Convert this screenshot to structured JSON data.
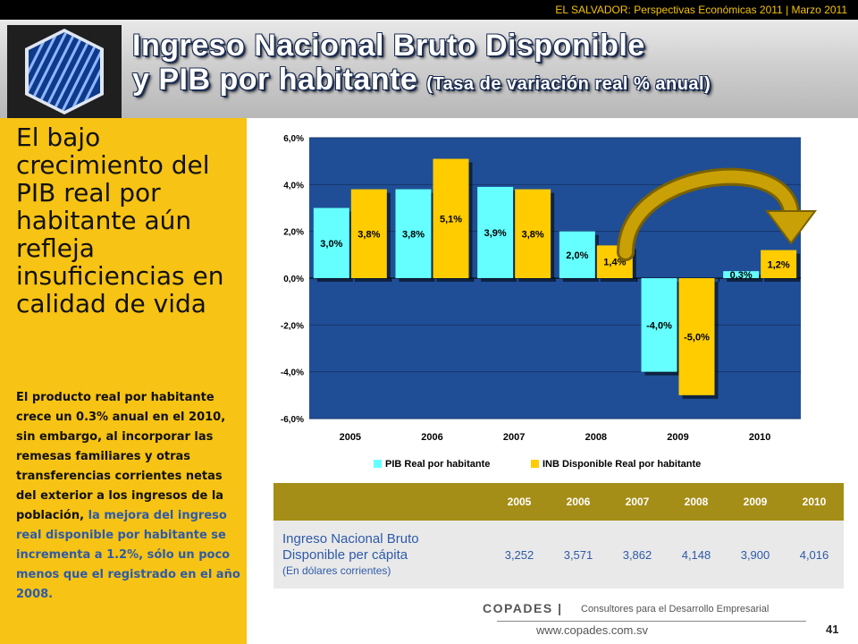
{
  "top_subtitle": "EL SALVADOR: Perspectivas Económicas 2011 | Marzo 2011",
  "title": {
    "line1": "Ingreso Nacional Bruto Disponible",
    "line2": "y PIB por habitante",
    "line2_suffix": "(Tasa de variación real % anual)"
  },
  "headline": "El bajo crecimiento del PIB real por habitante aún refleja insuficiencias en calidad de vida",
  "body": {
    "plain": "El producto real por habitante crece un 0.3% anual en el 2010, sin embargo, al incorporar las remesas familiares y otras transferencias corrientes netas del exterior a los ingresos de la población,",
    "highlight": " la mejora del ingreso real disponible por habitante se incrementa a 1.2%, sólo un poco menos que el registrado en el año 2008."
  },
  "colors": {
    "plot_bg": "#1f4e96",
    "series1": "#66ffff",
    "series2": "#ffcc00",
    "arrow": "#c9a106",
    "panel": "#f7c314",
    "table_header": "#a58e17"
  },
  "chart_data": {
    "type": "bar",
    "categories": [
      "2005",
      "2006",
      "2007",
      "2008",
      "2009",
      "2010"
    ],
    "series": [
      {
        "name": "PIB Real por habitante",
        "values": [
          3.0,
          3.8,
          3.9,
          2.0,
          -4.0,
          0.3
        ],
        "labels": [
          "3,0%",
          "3,8%",
          "3,9%",
          "2,0%",
          "-4,0%",
          "0,3%"
        ]
      },
      {
        "name": "INB Disponible Real por habitante",
        "values": [
          3.8,
          5.1,
          3.8,
          1.4,
          -5.0,
          1.2
        ],
        "labels": [
          "3,8%",
          "5,1%",
          "3,8%",
          "1,4%",
          "-5,0%",
          "1,2%"
        ]
      }
    ],
    "yticks": [
      6,
      4,
      2,
      0,
      -2,
      -4,
      -6
    ],
    "ytick_labels": [
      "6,0%",
      "4,0%",
      "2,0%",
      "0,0%",
      "-2,0%",
      "-4,0%",
      "-6,0%"
    ],
    "ylim": [
      -6,
      6
    ],
    "legend": "bottom",
    "title": "",
    "xlabel": "",
    "ylabel": ""
  },
  "table": {
    "years": [
      "2005",
      "2006",
      "2007",
      "2008",
      "2009",
      "2010"
    ],
    "row_label_line1": "Ingreso Nacional Bruto",
    "row_label_line2": "Disponible per cápita",
    "row_label_note": "(En dólares corrientes)",
    "values": [
      "3,252",
      "3,571",
      "3,862",
      "4,148",
      "3,900",
      "4,016"
    ]
  },
  "footer": {
    "brand": "COPADES |",
    "tagline": "Consultores para el Desarrollo Empresarial",
    "website": "www.copades.com.sv",
    "page": "41"
  }
}
